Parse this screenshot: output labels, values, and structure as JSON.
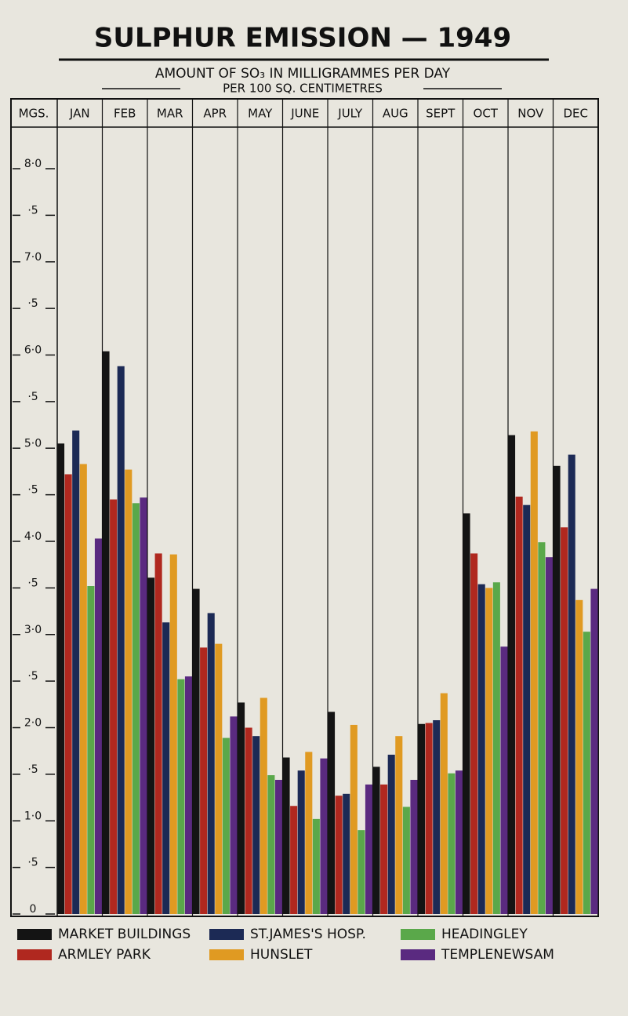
{
  "chart_data": {
    "type": "bar",
    "title": "SULPHUR EMISSION — 1949",
    "subtitle": [
      "AMOUNT OF SO₃ IN MILLIGRAMMES PER DAY",
      "PER 100 SQ. CENTIMETRES"
    ],
    "y_label": "MGS.",
    "categories": [
      "JAN",
      "FEB",
      "MAR",
      "APR",
      "MAY",
      "JUNE",
      "JULY",
      "AUG",
      "SEPT",
      "OCT",
      "NOV",
      "DEC"
    ],
    "series": [
      {
        "name": "MARKET BUILDINGS",
        "color": "#141414",
        "values": [
          5.05,
          6.04,
          3.61,
          3.49,
          2.27,
          1.68,
          2.17,
          1.58,
          2.04,
          4.3,
          5.14,
          4.81
        ]
      },
      {
        "name": "ARMLEY PARK",
        "color": "#b0281f",
        "values": [
          4.72,
          4.45,
          3.87,
          2.86,
          2.0,
          1.16,
          1.27,
          1.39,
          2.05,
          3.87,
          4.48,
          4.15
        ]
      },
      {
        "name": "ST.JAMES'S HOSP.",
        "color": "#1c2a55",
        "values": [
          5.19,
          5.88,
          3.13,
          3.23,
          1.91,
          1.54,
          1.29,
          1.71,
          2.08,
          3.54,
          4.39,
          4.93
        ]
      },
      {
        "name": "HUNSLET",
        "color": "#e09a22",
        "values": [
          4.83,
          4.77,
          3.86,
          2.9,
          2.32,
          1.74,
          2.03,
          1.91,
          2.37,
          3.5,
          5.18,
          3.37
        ]
      },
      {
        "name": "HEADINGLEY",
        "color": "#5aa84a",
        "values": [
          3.52,
          4.41,
          2.52,
          1.89,
          1.49,
          1.02,
          0.9,
          1.15,
          1.51,
          3.56,
          3.99,
          3.03
        ]
      },
      {
        "name": "TEMPLENEWSAM",
        "color": "#5a2a80",
        "values": [
          4.03,
          4.47,
          2.55,
          2.12,
          1.44,
          1.67,
          1.39,
          1.44,
          1.54,
          2.87,
          3.83,
          3.49
        ]
      }
    ],
    "ylim": [
      0,
      8.8
    ],
    "yticks": [
      0,
      {
        "value": 0.5,
        "label": "·5"
      },
      {
        "value": 1,
        "label": "1·0"
      },
      {
        "value": 1.5,
        "label": "·5"
      },
      {
        "value": 2,
        "label": "2·0"
      },
      {
        "value": 2.5,
        "label": "·5"
      },
      {
        "value": 3,
        "label": "3·0"
      },
      {
        "value": 3.5,
        "label": "·5"
      },
      {
        "value": 4,
        "label": "4·0"
      },
      {
        "value": 4.5,
        "label": "·5"
      },
      {
        "value": 5,
        "label": "5·0"
      },
      {
        "value": 5.5,
        "label": "·5"
      },
      {
        "value": 6,
        "label": "6·0"
      },
      {
        "value": 6.5,
        "label": "·5"
      },
      {
        "value": 7,
        "label": "7·0"
      },
      {
        "value": 7.5,
        "label": "·5"
      },
      {
        "value": 8,
        "label": "8·0"
      }
    ],
    "grid": true
  }
}
